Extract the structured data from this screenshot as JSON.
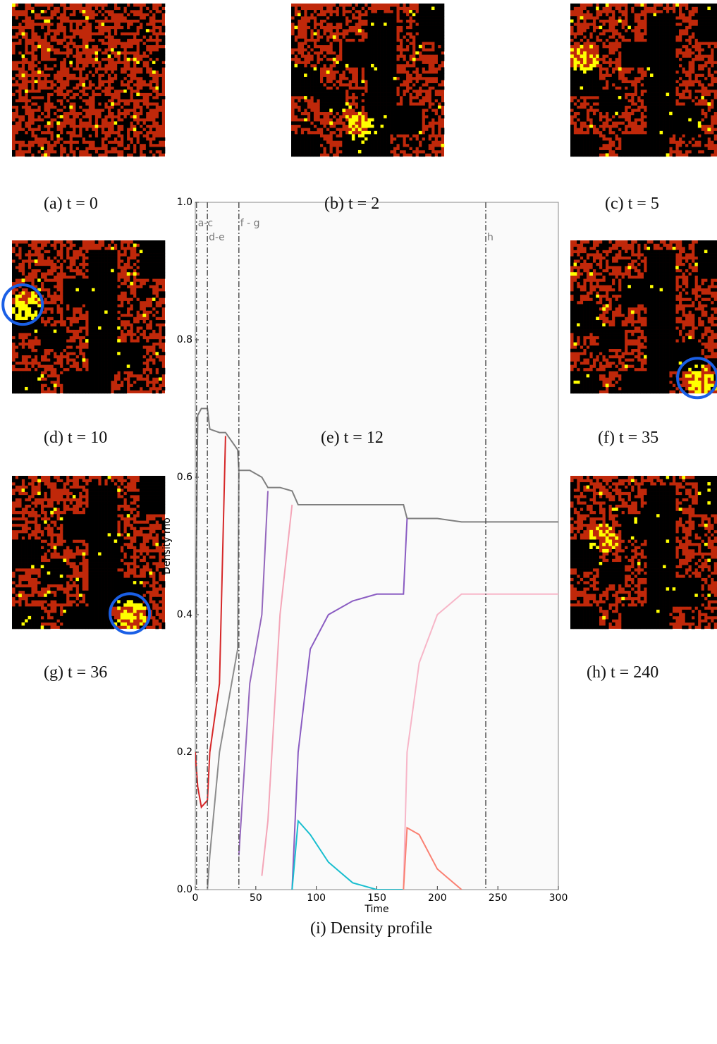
{
  "panels": [
    {
      "caption": "(a) t = 0"
    },
    {
      "caption": "(b) t = 2"
    },
    {
      "caption": "(c) t = 5"
    },
    {
      "caption": "(d) t = 10"
    },
    {
      "caption": "(e) t = 12"
    },
    {
      "caption": "(f) t = 35"
    },
    {
      "caption": "(g) t = 36"
    },
    {
      "caption": "(h) t = 240"
    }
  ],
  "figure_caption": "(i) Density profile",
  "chart_data": {
    "type": "line",
    "xlabel": "Time",
    "ylabel": "Density rho",
    "x": [
      0,
      2,
      5,
      10,
      12,
      20,
      25,
      35,
      36,
      45,
      55,
      60,
      70,
      80,
      85,
      95,
      110,
      130,
      150,
      172,
      175,
      185,
      200,
      220,
      240,
      260,
      300
    ],
    "series": [
      {
        "color": "#7f7f7f",
        "values": [
          0.3,
          0.69,
          0.7,
          0.7,
          0.67,
          0.665,
          0.665,
          0.64,
          0.61,
          0.61,
          0.6,
          0.585,
          0.585,
          0.58,
          0.56,
          0.56,
          0.56,
          0.56,
          0.56,
          0.56,
          0.54,
          0.54,
          0.54,
          0.535,
          0.535,
          0.535,
          0.535
        ]
      },
      {
        "color": "#d62728",
        "values": [
          0.2,
          0.15,
          0.12,
          0.13,
          0.2,
          0.3,
          0.66,
          null,
          null,
          null,
          null,
          null,
          null,
          null,
          null,
          null,
          null,
          null,
          null,
          null,
          null,
          null,
          null,
          null,
          null,
          null,
          null
        ]
      },
      {
        "color": "#8c8c8c",
        "values": [
          null,
          null,
          null,
          0.0,
          0.05,
          0.2,
          0.25,
          0.35,
          0.61,
          null,
          null,
          null,
          null,
          null,
          null,
          null,
          null,
          null,
          null,
          null,
          null,
          null,
          null,
          null,
          null,
          null,
          null
        ]
      },
      {
        "color": "#9467bd",
        "values": [
          null,
          null,
          null,
          null,
          null,
          null,
          null,
          null,
          0.05,
          0.3,
          0.4,
          0.58,
          null,
          null,
          null,
          null,
          null,
          null,
          null,
          null,
          null,
          null,
          null,
          null,
          null,
          null,
          null
        ]
      },
      {
        "color": "#f4a6b8",
        "values": [
          null,
          null,
          null,
          null,
          null,
          null,
          null,
          null,
          null,
          null,
          0.02,
          0.1,
          0.4,
          0.56,
          null,
          null,
          null,
          null,
          null,
          null,
          null,
          null,
          null,
          null,
          null,
          null,
          null
        ]
      },
      {
        "color": "#8a5cc2",
        "values": [
          null,
          null,
          null,
          null,
          null,
          null,
          null,
          null,
          null,
          null,
          null,
          null,
          null,
          0.0,
          0.2,
          0.35,
          0.4,
          0.42,
          0.43,
          0.43,
          0.54,
          null,
          null,
          null,
          null,
          null,
          null
        ]
      },
      {
        "color": "#f7b6c8",
        "values": [
          null,
          null,
          null,
          null,
          null,
          null,
          null,
          null,
          null,
          null,
          null,
          null,
          null,
          null,
          null,
          null,
          null,
          null,
          null,
          0.0,
          0.2,
          0.33,
          0.4,
          0.43,
          0.43,
          0.43,
          0.43
        ]
      },
      {
        "color": "#17becf",
        "values": [
          null,
          null,
          null,
          null,
          null,
          null,
          null,
          null,
          null,
          null,
          null,
          null,
          null,
          0.0,
          0.1,
          0.08,
          0.04,
          0.01,
          0.0,
          0.0,
          null,
          null,
          null,
          null,
          null,
          null,
          null
        ]
      },
      {
        "color": "#fa8072",
        "values": [
          null,
          null,
          null,
          null,
          null,
          null,
          null,
          null,
          null,
          null,
          null,
          null,
          null,
          null,
          null,
          null,
          null,
          null,
          null,
          0.0,
          0.09,
          0.08,
          0.03,
          0.0,
          null,
          null,
          null
        ]
      }
    ],
    "vlines": [
      {
        "x": 1,
        "label": "a-c"
      },
      {
        "x": 10,
        "label": "d-e"
      },
      {
        "x": 36,
        "label": "f - g"
      },
      {
        "x": 240,
        "label": "h"
      }
    ],
    "xlim": [
      0,
      300
    ],
    "xticks": [
      0,
      50,
      100,
      150,
      200,
      250,
      300
    ],
    "ylim": [
      0,
      1
    ],
    "yticks": [
      {
        "value": 0,
        "label": "0.0"
      },
      0.2,
      0.4,
      0.6,
      0.8,
      {
        "value": 1,
        "label": "1.0"
      }
    ]
  }
}
